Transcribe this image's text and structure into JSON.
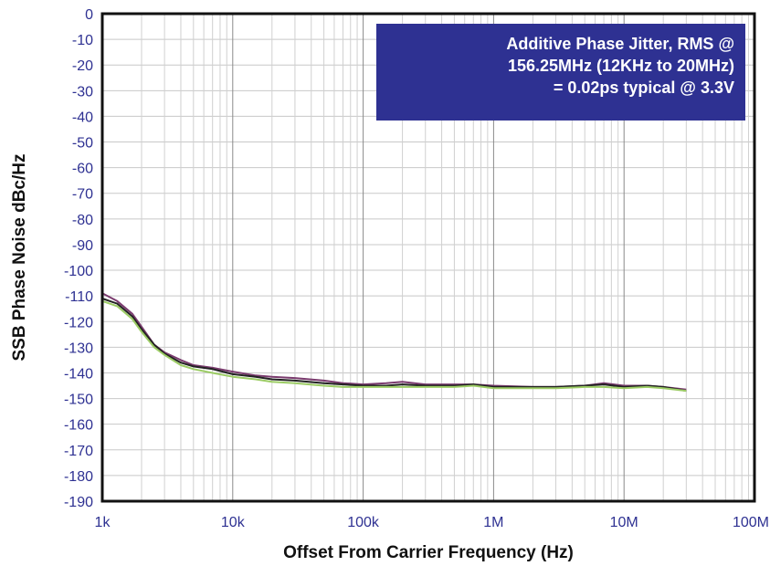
{
  "chart_data": {
    "type": "line",
    "x_scale": "log",
    "xlabel": "Offset From Carrier Frequency (Hz)",
    "ylabel": "SSB Phase Noise dBc/Hz",
    "xlim": [
      1000,
      100000000
    ],
    "ylim": [
      -190,
      0
    ],
    "x_tick_values": [
      1000,
      10000,
      100000,
      1000000,
      10000000,
      100000000
    ],
    "x_tick_labels": [
      "1k",
      "10k",
      "100k",
      "1M",
      "10M",
      "100M"
    ],
    "y_tick_labels": [
      "0",
      "-10",
      "-20",
      "-30",
      "-40",
      "-50",
      "-60",
      "-70",
      "-80",
      "-90",
      "-100",
      "-110",
      "-120",
      "-130",
      "-140",
      "-150",
      "-160",
      "-170",
      "-180",
      "-190"
    ],
    "y_tick_values": [
      0,
      -10,
      -20,
      -30,
      -40,
      -50,
      -60,
      -70,
      -80,
      -90,
      -100,
      -110,
      -120,
      -130,
      -140,
      -150,
      -160,
      -170,
      -180,
      -190
    ],
    "grid": true,
    "annotation": {
      "lines": [
        "Additive Phase Jitter, RMS @",
        "156.25MHz (12KHz to 20MHz)",
        "= 0.02ps typical @ 3.3V"
      ],
      "background": "#2e3192",
      "color": "#ffffff"
    },
    "series": [
      {
        "color": "#7a3b6e",
        "x": [
          1000,
          1300,
          1700,
          2000,
          2500,
          3000,
          4000,
          5000,
          7000,
          10000,
          15000,
          20000,
          30000,
          50000,
          70000,
          100000,
          150000,
          200000,
          300000,
          500000,
          700000,
          1000000,
          2000000,
          3000000,
          5000000,
          7000000,
          10000000,
          15000000,
          20000000,
          30000000
        ],
        "y": [
          -109,
          -112,
          -117,
          -122,
          -129,
          -132,
          -135,
          -137,
          -138,
          -139.5,
          -141,
          -141.5,
          -142,
          -143,
          -144,
          -144.5,
          -144,
          -143.5,
          -144.5,
          -144.5,
          -144.5,
          -145,
          -145.5,
          -145.5,
          -145,
          -144,
          -145,
          -145,
          -145.5,
          -146.5
        ]
      },
      {
        "color": "#222222",
        "x": [
          1000,
          1300,
          1700,
          2000,
          2500,
          3000,
          4000,
          5000,
          7000,
          10000,
          15000,
          20000,
          30000,
          50000,
          70000,
          100000,
          150000,
          200000,
          300000,
          500000,
          700000,
          1000000,
          2000000,
          3000000,
          5000000,
          7000000,
          10000000,
          15000000,
          20000000,
          30000000
        ],
        "y": [
          -111,
          -113,
          -118,
          -123,
          -129,
          -132.5,
          -136,
          -137.5,
          -138.5,
          -140.5,
          -141.5,
          -142.5,
          -143,
          -144,
          -144.5,
          -145,
          -145,
          -144.5,
          -145,
          -145,
          -144.5,
          -145.5,
          -145.5,
          -145.5,
          -145,
          -144.5,
          -145.5,
          -145,
          -145.5,
          -147
        ]
      },
      {
        "color": "#9ccc65",
        "x": [
          1000,
          1300,
          1700,
          2000,
          2500,
          3000,
          4000,
          5000,
          7000,
          10000,
          15000,
          20000,
          30000,
          50000,
          70000,
          100000,
          150000,
          200000,
          300000,
          500000,
          700000,
          1000000,
          2000000,
          3000000,
          5000000,
          7000000,
          10000000,
          15000000,
          20000000,
          30000000
        ],
        "y": [
          -112,
          -114,
          -119,
          -124,
          -130,
          -133,
          -137,
          -138.5,
          -140,
          -141.5,
          -142.5,
          -143.5,
          -144,
          -145,
          -145.5,
          -145.5,
          -145.5,
          -145.5,
          -145.5,
          -145.5,
          -145,
          -146,
          -146,
          -146,
          -145.5,
          -145.5,
          -146,
          -145.5,
          -146,
          -147
        ]
      }
    ]
  }
}
